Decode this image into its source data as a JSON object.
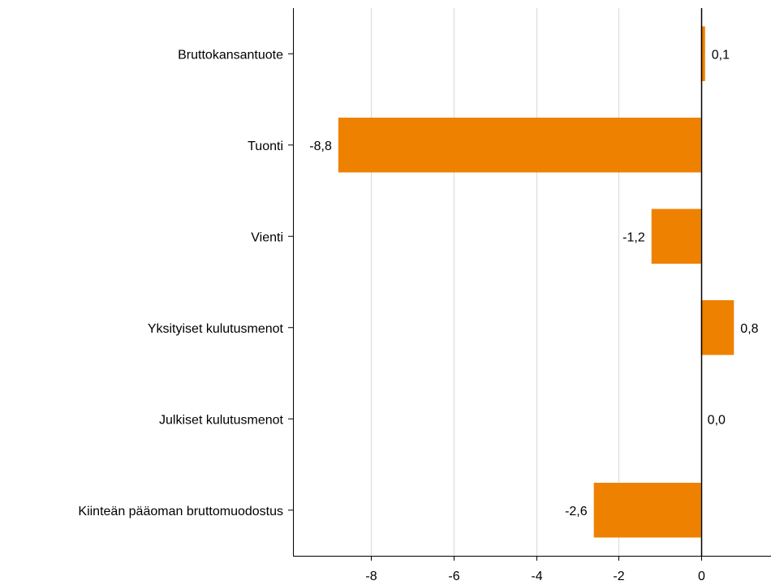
{
  "chart_data": {
    "type": "bar",
    "orientation": "horizontal",
    "categories": [
      "Bruttokansantuote",
      "Tuonti",
      "Vienti",
      "Yksityiset kulutusmenot",
      "Julkiset kulutusmenot",
      "Kiinteän pääoman bruttomuodostus"
    ],
    "values": [
      0.1,
      -8.8,
      -1.2,
      0.8,
      0.0,
      -2.6
    ],
    "value_labels": [
      "0,1",
      "-8,8",
      "-1,2",
      "0,8",
      "0,0",
      "-2,6"
    ],
    "x_ticks": [
      -8,
      -6,
      -4,
      -2,
      0
    ],
    "x_tick_labels": [
      "-8",
      "-6",
      "-4",
      "-2",
      "0"
    ],
    "xlim": [
      -9.9,
      1.7
    ],
    "title": "",
    "xlabel": "",
    "ylabel": "",
    "grid": "vertical",
    "bar_color": "#ee8100",
    "grid_color": "#d9d9d9",
    "axis_color": "#000000"
  }
}
